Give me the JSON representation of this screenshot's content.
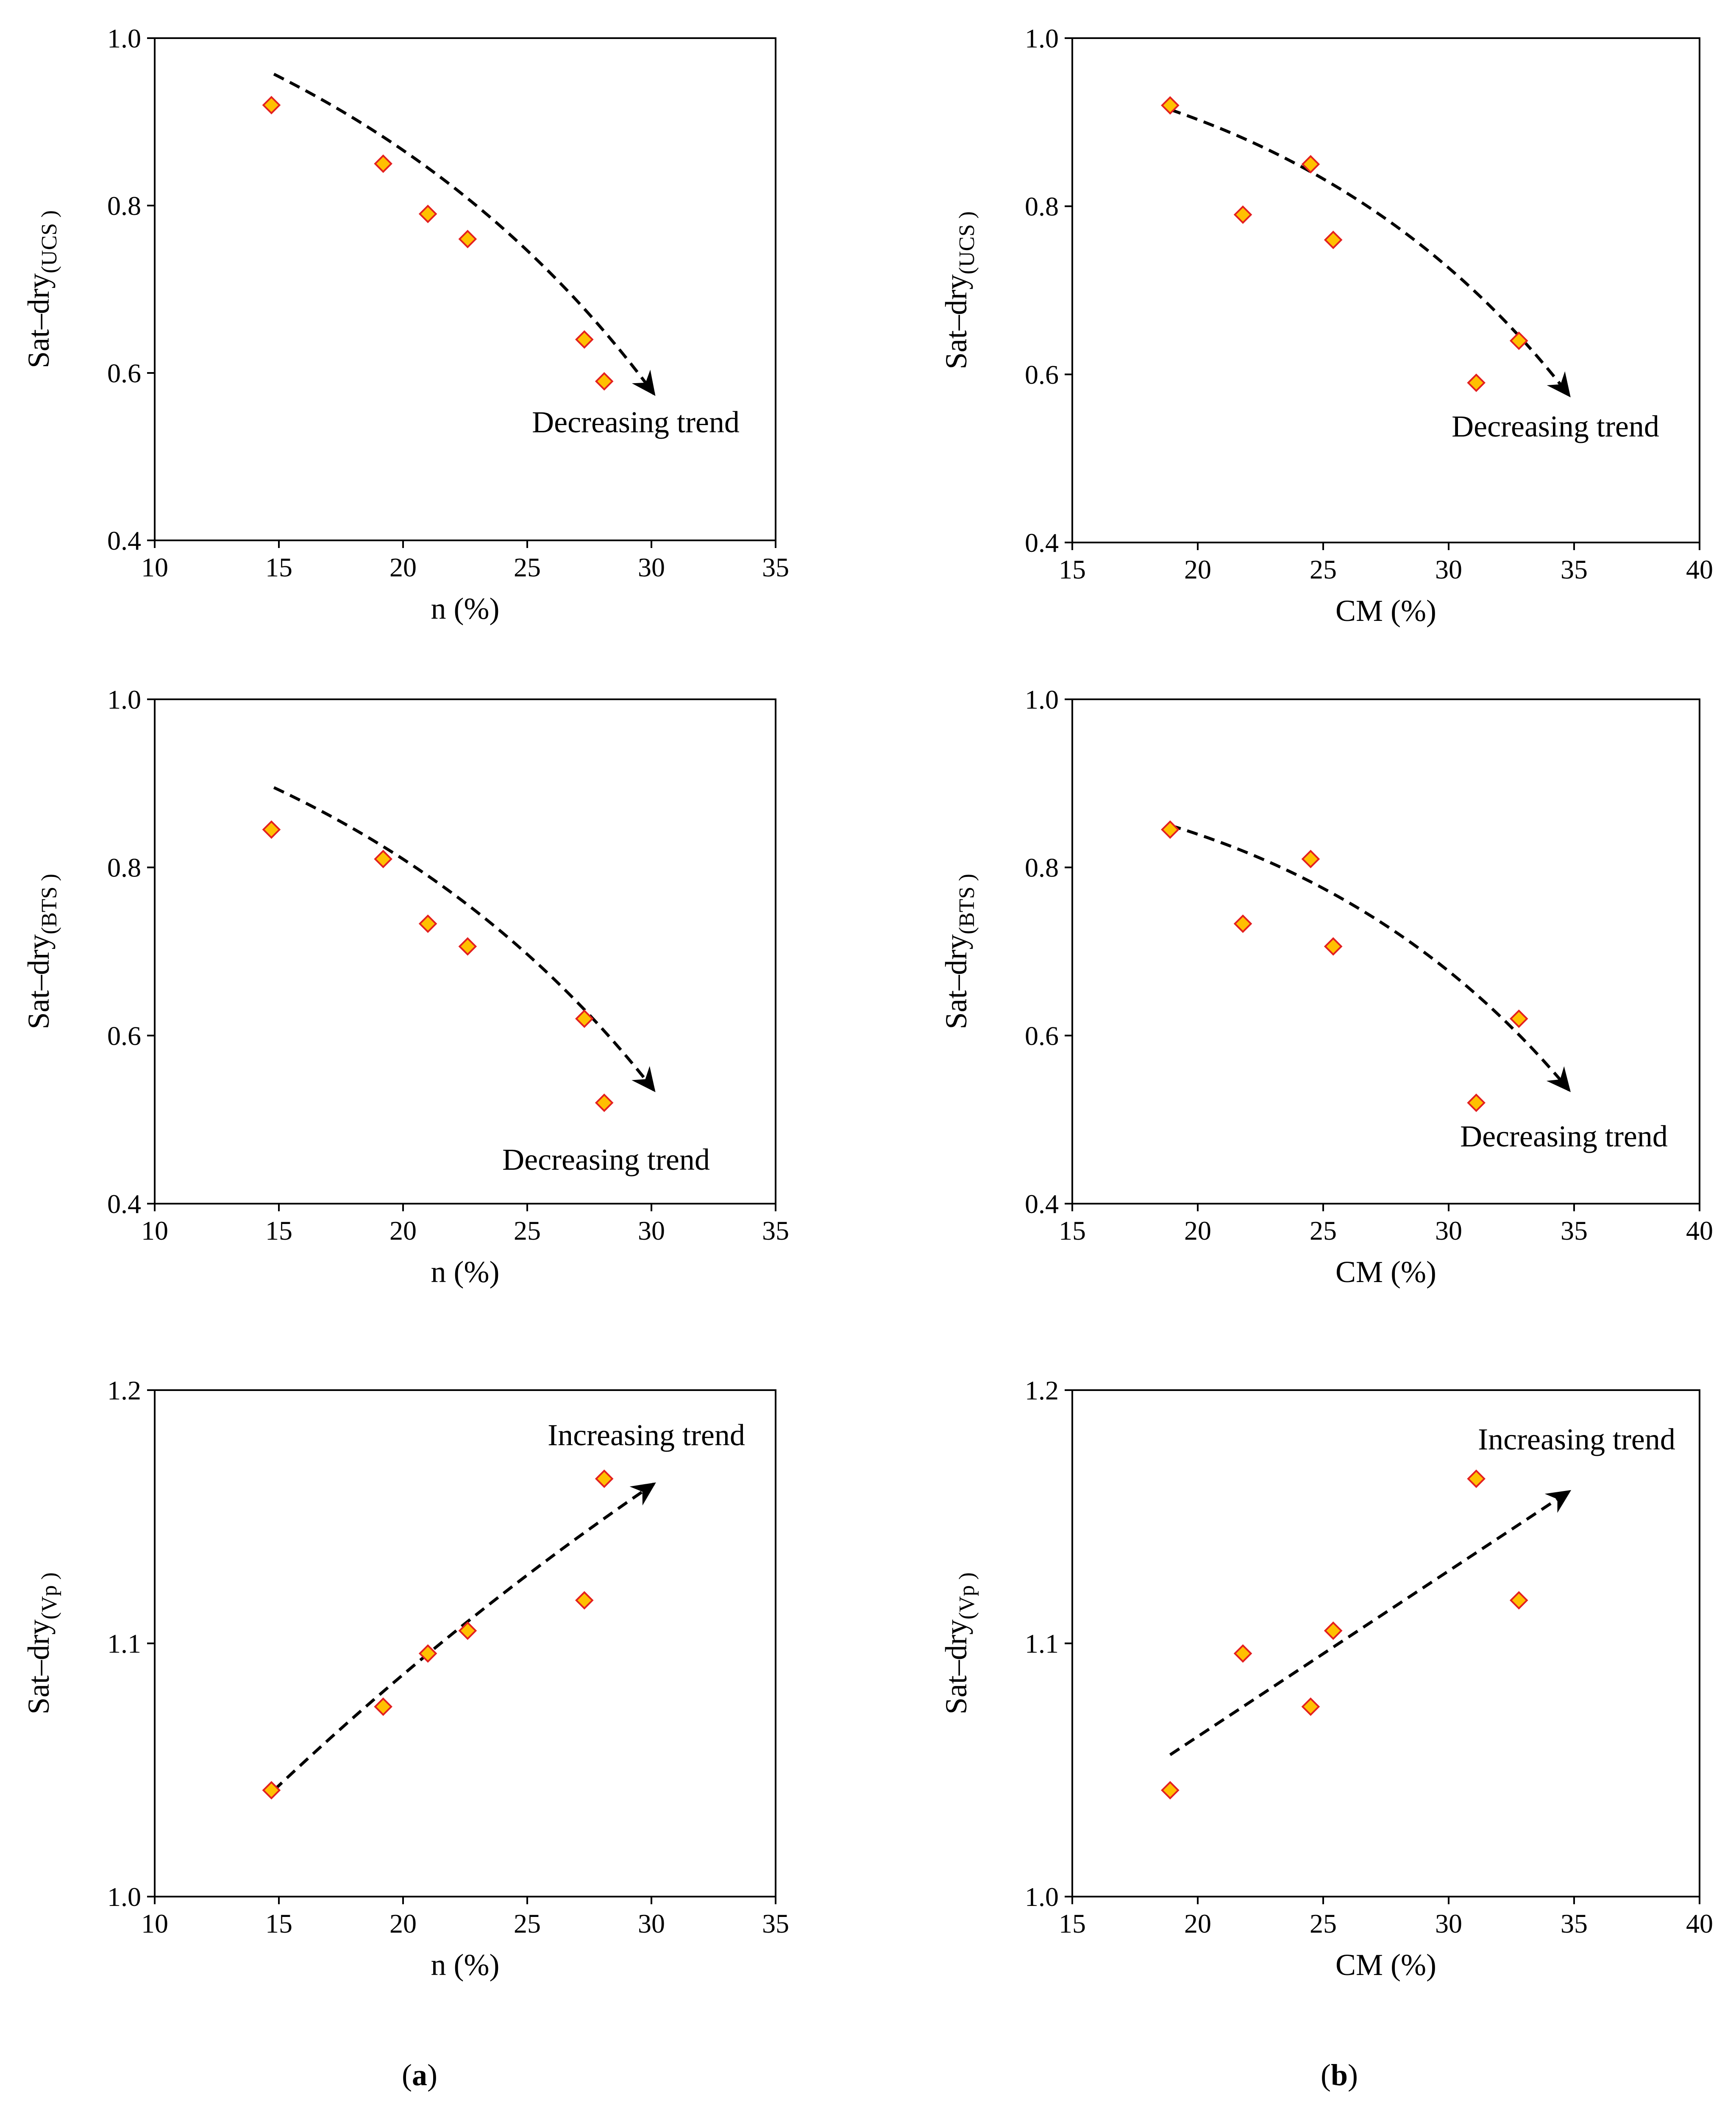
{
  "panel_labels": [
    {
      "open": "(",
      "letter": "a",
      "close": ")"
    },
    {
      "open": "(",
      "letter": "b",
      "close": ")"
    }
  ],
  "colors": {
    "marker_fill": "#FFC000",
    "marker_edge": "#E32020",
    "axes": "#000000"
  },
  "chart_data": [
    {
      "type": "scatter",
      "xlabel": "n (%)",
      "ylabel_main": "Sat–dry",
      "ylabel_sub": "(UCS )",
      "xlim": [
        10,
        35
      ],
      "ylim": [
        0.4,
        1.0
      ],
      "xticks": [
        "10",
        "15",
        "20",
        "25",
        "30",
        "35"
      ],
      "yticks": [
        "0.4",
        "0.6",
        "0.8",
        "1.0"
      ],
      "x": [
        14.7,
        19.2,
        21.0,
        22.6,
        27.3,
        28.1
      ],
      "y": [
        0.92,
        0.85,
        0.79,
        0.76,
        0.64,
        0.59
      ],
      "trend": {
        "direction": "decreasing",
        "label": "Decreasing trend",
        "start": [
          14.8,
          0.957
        ],
        "end": [
          30.1,
          0.575
        ],
        "curve": -0.012
      }
    },
    {
      "type": "scatter",
      "xlabel": "CM (%)",
      "ylabel_main": "Sat–dry",
      "ylabel_sub": "(UCS )",
      "xlim": [
        15,
        40
      ],
      "ylim": [
        0.4,
        1.0
      ],
      "xticks": [
        "15",
        "20",
        "25",
        "30",
        "35",
        "40"
      ],
      "yticks": [
        "0.4",
        "0.6",
        "0.8",
        "1.0"
      ],
      "x": [
        18.9,
        21.8,
        24.5,
        25.4,
        31.1,
        32.8
      ],
      "y": [
        0.92,
        0.79,
        0.85,
        0.76,
        0.59,
        0.64
      ],
      "trend": {
        "direction": "decreasing",
        "label": "Decreasing trend",
        "start": [
          18.9,
          0.915
        ],
        "end": [
          34.8,
          0.575
        ],
        "curve": -0.015
      }
    },
    {
      "type": "scatter",
      "xlabel": "n (%)",
      "ylabel_main": "Sat–dry",
      "ylabel_sub": "(BTS )",
      "xlim": [
        10,
        35
      ],
      "ylim": [
        0.4,
        1.0
      ],
      "xticks": [
        "10",
        "15",
        "20",
        "25",
        "30",
        "35"
      ],
      "yticks": [
        "0.4",
        "0.6",
        "0.8",
        "1.0"
      ],
      "x": [
        14.7,
        19.2,
        21.0,
        22.6,
        27.3,
        28.1
      ],
      "y": [
        0.845,
        0.81,
        0.733,
        0.706,
        0.62,
        0.52
      ],
      "trend": {
        "direction": "decreasing",
        "label": "Decreasing trend",
        "start": [
          14.8,
          0.895
        ],
        "end": [
          30.1,
          0.535
        ],
        "curve": -0.012
      }
    },
    {
      "type": "scatter",
      "xlabel": "CM (%)",
      "ylabel_main": "Sat–dry",
      "ylabel_sub": "(BTS )",
      "xlim": [
        15,
        40
      ],
      "ylim": [
        0.4,
        1.0
      ],
      "xticks": [
        "15",
        "20",
        "25",
        "30",
        "35",
        "40"
      ],
      "yticks": [
        "0.4",
        "0.6",
        "0.8",
        "1.0"
      ],
      "x": [
        18.9,
        21.8,
        24.5,
        25.4,
        31.1,
        32.8
      ],
      "y": [
        0.845,
        0.733,
        0.81,
        0.706,
        0.52,
        0.62
      ],
      "trend": {
        "direction": "decreasing",
        "label": "Decreasing trend",
        "start": [
          18.9,
          0.85
        ],
        "end": [
          34.8,
          0.535
        ],
        "curve": -0.015
      }
    },
    {
      "type": "scatter",
      "xlabel": "n (%)",
      "ylabel_main": "Sat–dry",
      "ylabel_sub": "(Vp )",
      "xlim": [
        10,
        35
      ],
      "ylim": [
        1.0,
        1.2
      ],
      "xticks": [
        "10",
        "15",
        "20",
        "25",
        "30",
        "35"
      ],
      "yticks": [
        "1.0",
        "1.1",
        "1.2"
      ],
      "x": [
        14.7,
        19.2,
        21.0,
        22.6,
        27.3,
        28.1
      ],
      "y": [
        1.042,
        1.075,
        1.096,
        1.105,
        1.117,
        1.165
      ],
      "trend": {
        "direction": "increasing",
        "label": "Increasing trend",
        "start": [
          14.8,
          1.042
        ],
        "end": [
          30.1,
          1.163
        ],
        "curve": -0.004
      }
    },
    {
      "type": "scatter",
      "xlabel": "CM (%)",
      "ylabel_main": "Sat–dry",
      "ylabel_sub": "(Vp )",
      "xlim": [
        15,
        40
      ],
      "ylim": [
        1.0,
        1.2
      ],
      "xticks": [
        "15",
        "20",
        "25",
        "30",
        "35",
        "40"
      ],
      "yticks": [
        "1.0",
        "1.1",
        "1.2"
      ],
      "x": [
        18.9,
        21.8,
        24.5,
        25.4,
        31.1,
        32.8
      ],
      "y": [
        1.042,
        1.096,
        1.075,
        1.105,
        1.165,
        1.117
      ],
      "trend": {
        "direction": "increasing",
        "label": "Increasing trend",
        "start": [
          18.9,
          1.056
        ],
        "end": [
          34.8,
          1.16
        ],
        "curve": 0
      }
    }
  ]
}
